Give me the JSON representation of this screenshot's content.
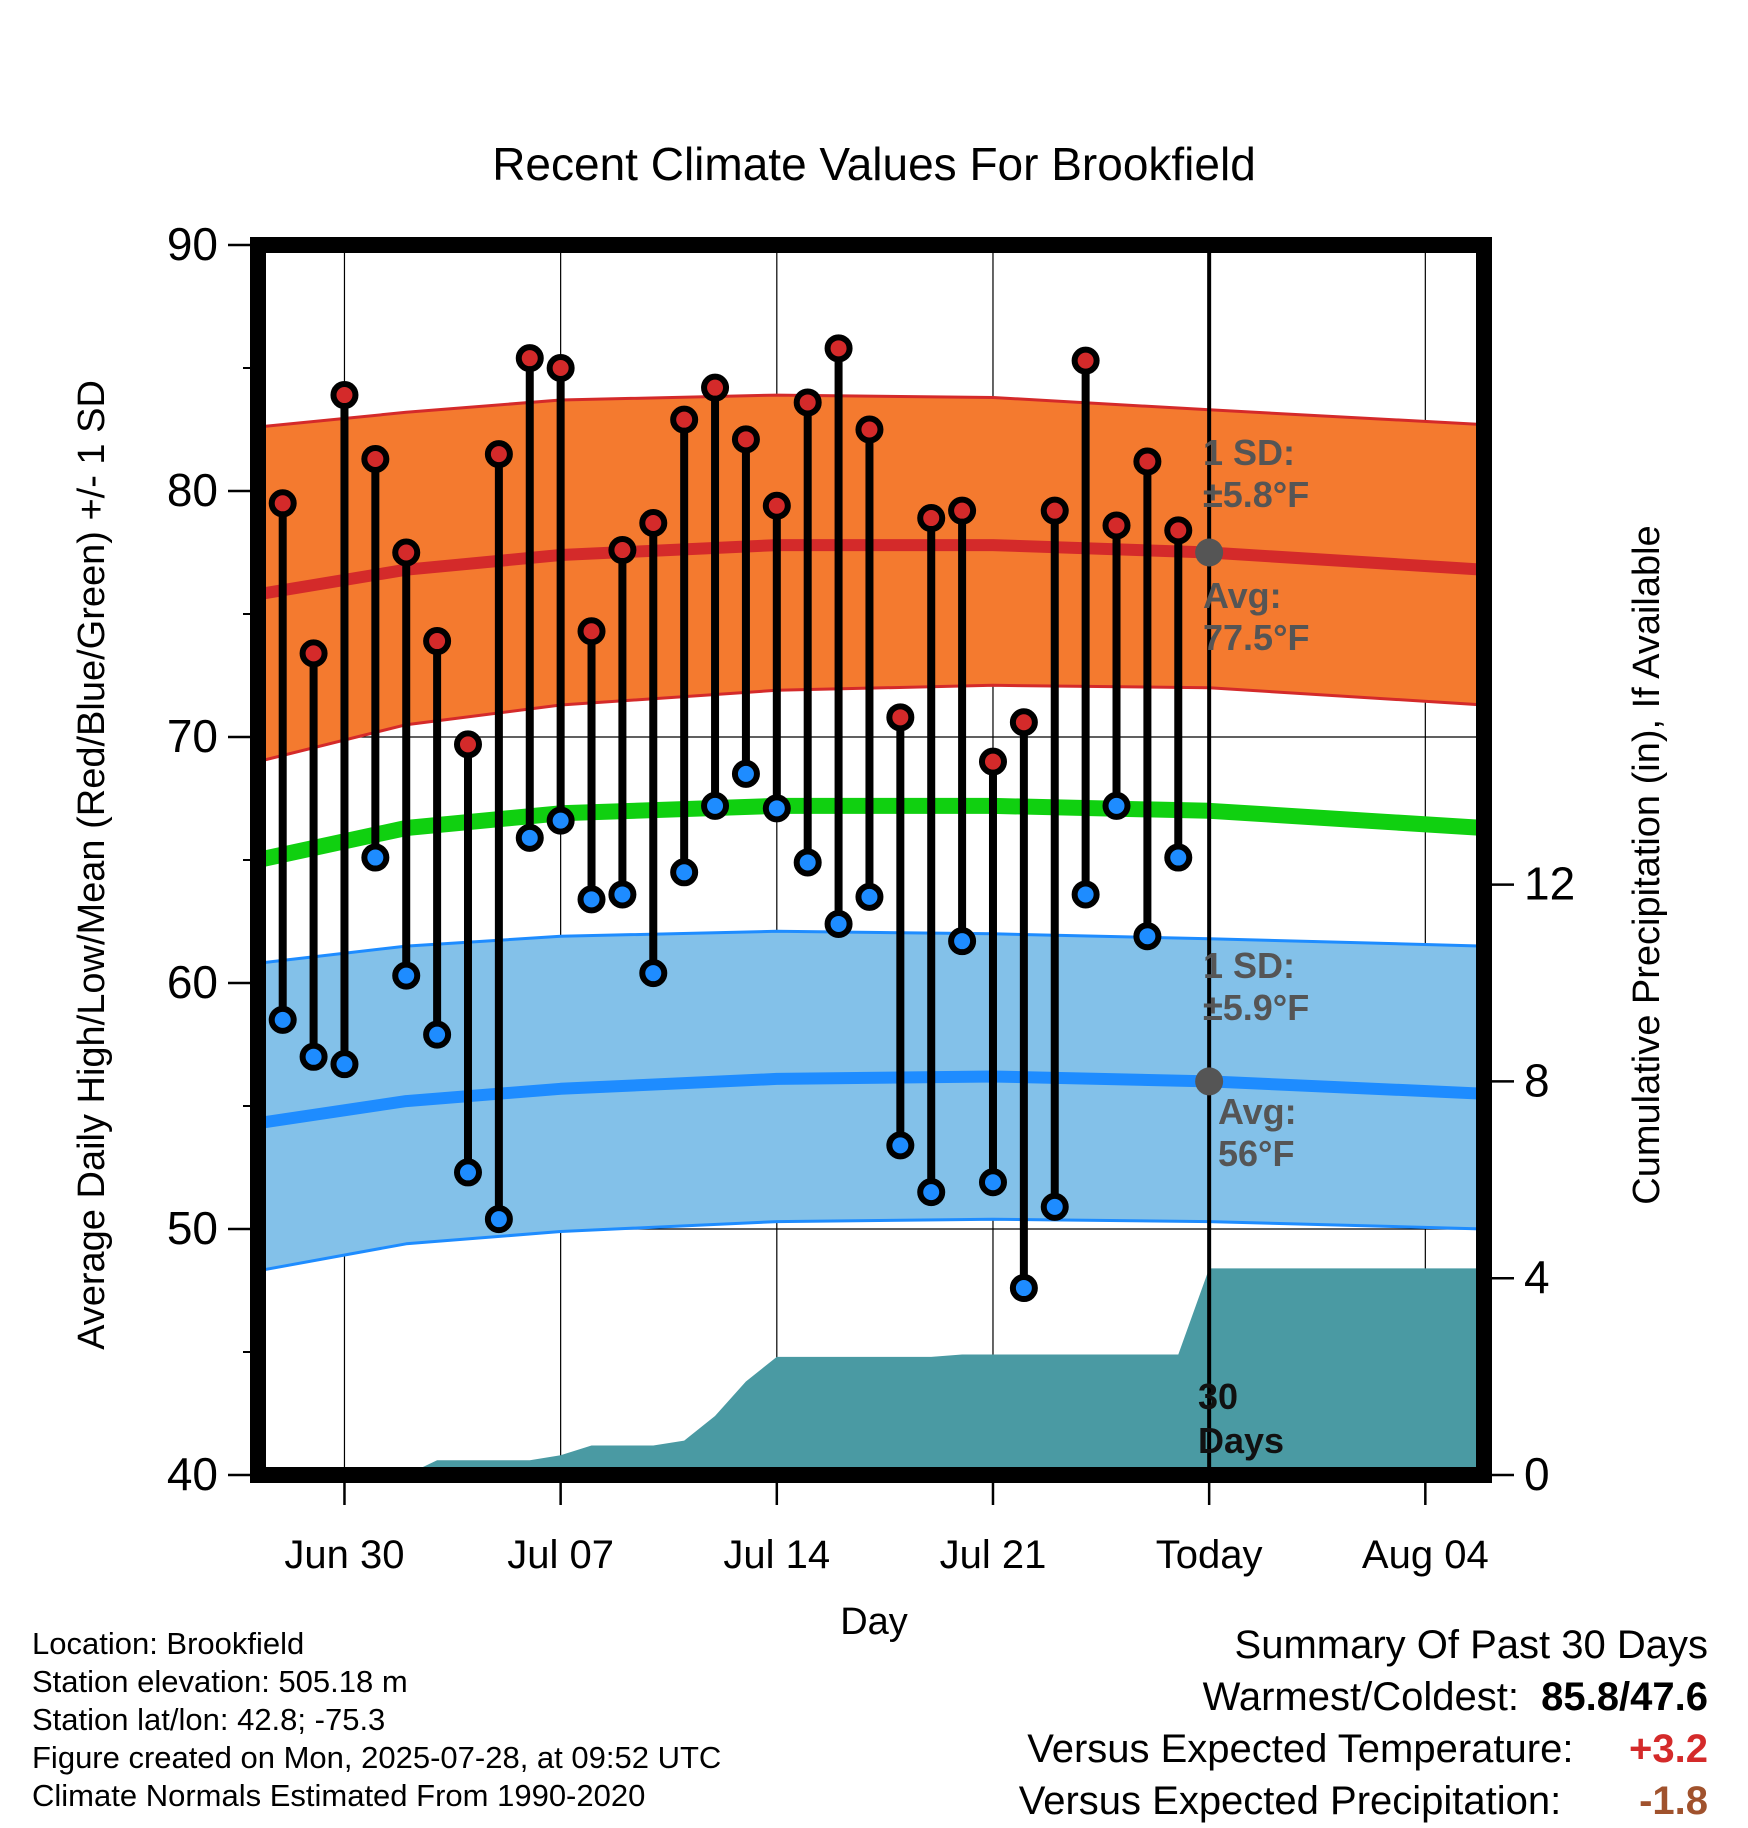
{
  "chart_data": {
    "type": "line",
    "title": "Recent Climate Values For Brookfield",
    "xlabel": "Day",
    "ylabel": "Average Daily High/Low/Mean (Red/Blue/Green) +/- 1 SD",
    "y2label": "Cumulative Precipitation (in), If Available",
    "ylim": [
      40,
      90
    ],
    "y2lim": [
      0,
      25
    ],
    "y_ticks": [
      "40",
      "50",
      "60",
      "70",
      "80",
      "90"
    ],
    "y2_ticks": [
      "0",
      "4",
      "8",
      "12"
    ],
    "x_ticks": [
      "Jun 30",
      "Jul 07",
      "Jul 14",
      "Jul 21",
      "Today",
      "Aug 04"
    ],
    "x_tick_days": [
      2,
      9,
      16,
      23,
      30,
      37
    ],
    "x_range": [
      -0.8,
      38.9
    ],
    "today_day": 30,
    "colors": {
      "high": "#d42a2a",
      "high_band": "#f47a2f",
      "low": "#1e8cff",
      "low_band": "#83c1e9",
      "mean": "#10d010",
      "precip": "#4a9aa3",
      "annotation": "#555555",
      "warm": "#d42a2a",
      "dry": "#a0522d"
    },
    "normals": {
      "days": [
        -0.8,
        4,
        9,
        16,
        23,
        30,
        38.9
      ],
      "high_avg": [
        75.8,
        76.8,
        77.4,
        77.8,
        77.8,
        77.5,
        76.8
      ],
      "high_upper": [
        82.6,
        83.2,
        83.7,
        83.9,
        83.8,
        83.3,
        82.7
      ],
      "high_lower": [
        69.0,
        70.5,
        71.3,
        71.9,
        72.1,
        72.0,
        71.3
      ],
      "mean": [
        65.0,
        66.3,
        66.9,
        67.2,
        67.2,
        67.0,
        66.3
      ],
      "low_avg": [
        54.3,
        55.2,
        55.7,
        56.1,
        56.2,
        56.0,
        55.5
      ],
      "low_upper": [
        60.8,
        61.5,
        61.9,
        62.1,
        62.0,
        61.8,
        61.5
      ],
      "low_lower": [
        48.3,
        49.4,
        49.9,
        50.3,
        50.4,
        50.3,
        50.0
      ]
    },
    "series": [
      {
        "name": "High",
        "x": [
          0,
          1,
          2,
          3,
          4,
          5,
          6,
          7,
          8,
          9,
          10,
          11,
          12,
          13,
          14,
          15,
          16,
          17,
          18,
          19,
          20,
          21,
          22,
          23,
          24,
          25,
          26,
          27,
          28,
          29
        ],
        "values": [
          79.5,
          73.4,
          83.9,
          81.3,
          77.5,
          73.9,
          69.7,
          81.5,
          85.4,
          85.0,
          74.3,
          77.6,
          78.7,
          82.9,
          84.2,
          82.1,
          79.4,
          83.6,
          85.8,
          82.5,
          70.8,
          78.9,
          79.2,
          69.0,
          70.6,
          79.2,
          85.3,
          78.6,
          81.2,
          78.4
        ]
      },
      {
        "name": "Low",
        "x": [
          0,
          1,
          2,
          3,
          4,
          5,
          6,
          7,
          8,
          9,
          10,
          11,
          12,
          13,
          14,
          15,
          16,
          17,
          18,
          19,
          20,
          21,
          22,
          23,
          24,
          25,
          26,
          27,
          28,
          29
        ],
        "values": [
          58.5,
          57.0,
          56.7,
          65.1,
          60.3,
          57.9,
          52.3,
          50.4,
          65.9,
          66.6,
          63.4,
          63.6,
          60.4,
          64.5,
          67.2,
          68.5,
          67.1,
          64.9,
          62.4,
          63.5,
          53.4,
          51.5,
          61.7,
          51.9,
          47.6,
          50.9,
          63.6,
          67.2,
          61.9,
          65.1
        ]
      },
      {
        "name": "Cumulative Precipitation",
        "x": [
          -0.8,
          1.2,
          2.2,
          3.0,
          4.0,
          5.0,
          6.0,
          7.0,
          8.0,
          9.0,
          10.0,
          11.0,
          12.0,
          13.0,
          14.0,
          15.0,
          16.0,
          17.0,
          18.0,
          19.0,
          20.0,
          21.0,
          22.0,
          23.0,
          24.0,
          25.0,
          26.0,
          27.0,
          28.0,
          29.0,
          30.0,
          38.9
        ],
        "values": [
          0,
          0,
          0,
          0,
          0,
          0.3,
          0.3,
          0.3,
          0.3,
          0.4,
          0.6,
          0.6,
          0.6,
          0.7,
          1.2,
          1.9,
          2.4,
          2.4,
          2.4,
          2.4,
          2.4,
          2.4,
          2.45,
          2.45,
          2.45,
          2.45,
          2.45,
          2.45,
          2.45,
          2.45,
          4.2,
          4.2
        ]
      }
    ],
    "annotations": {
      "high_sd": "1 SD:",
      "high_sd_val": "±5.8°F",
      "high_avg_label": "Avg:",
      "high_avg_val": "77.5°F",
      "low_sd": "1 SD:",
      "low_sd_val": "±5.9°F",
      "low_avg_label": "Avg:",
      "low_avg_val": "56°F",
      "days_label_1": "30",
      "days_label_2": "Days"
    },
    "grid": true
  },
  "info": {
    "location": "Location: Brookfield",
    "elevation": "Station elevation: 505.18 m",
    "latlon": "Station lat/lon: 42.8; -75.3",
    "created": "Figure created on Mon, 2025-07-28, at 09:52 UTC",
    "normals": "Climate Normals Estimated From 1990-2020"
  },
  "summary": {
    "heading": "Summary Of Past 30 Days",
    "warm_cold_label": "Warmest/Coldest:",
    "warm_cold_value": "85.8/47.6",
    "temp_label": "Versus Expected Temperature:",
    "temp_value": "+3.2",
    "precip_label": "Versus Expected Precipitation:",
    "precip_value": "-1.8"
  }
}
